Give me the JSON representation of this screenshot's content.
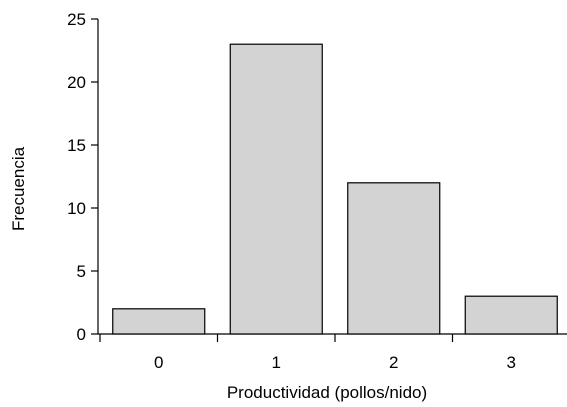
{
  "chart_data": {
    "type": "bar",
    "categories": [
      "0",
      "1",
      "2",
      "3"
    ],
    "values": [
      2,
      23,
      12,
      3
    ],
    "title": "",
    "xlabel": "Productividad (pollos/nido)",
    "ylabel": "Frecuencia",
    "ylim": [
      0,
      25
    ],
    "yticks": [
      "0",
      "5",
      "10",
      "15",
      "20",
      "25"
    ],
    "bar_color": "#d3d3d3",
    "grid": false,
    "legend": "none"
  }
}
